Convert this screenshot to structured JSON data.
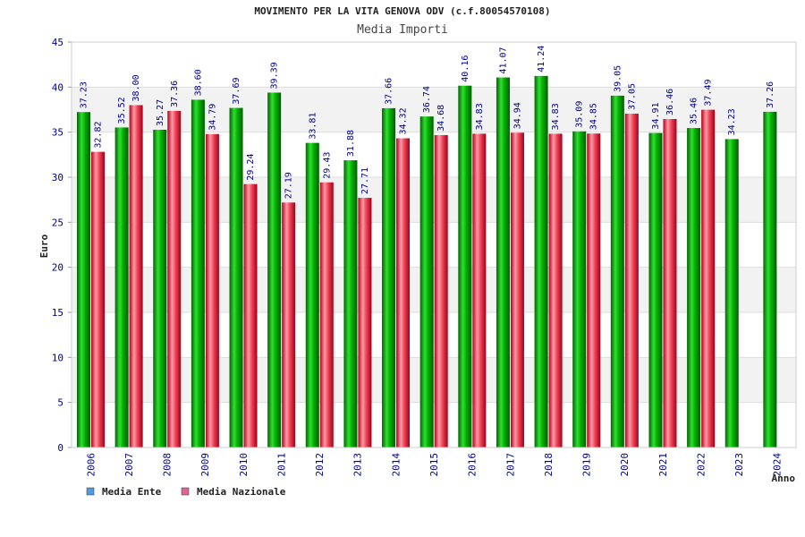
{
  "chart_data": {
    "type": "bar",
    "title": "MOVIMENTO PER LA VITA GENOVA ODV (c.f.80054570108)",
    "subtitle": "Media Importi",
    "ylabel": "Euro",
    "xlabel": "Anno",
    "ylim": [
      0,
      45
    ],
    "yticks": [
      "0",
      "5",
      "10",
      "15",
      "20",
      "25",
      "30",
      "35",
      "40",
      "45"
    ],
    "categories": [
      "2006",
      "2007",
      "2008",
      "2009",
      "2010",
      "2011",
      "2012",
      "2013",
      "2014",
      "2015",
      "2016",
      "2017",
      "2018",
      "2019",
      "2020",
      "2021",
      "2022",
      "2023",
      "2024"
    ],
    "series": [
      {
        "name": "Media Ente",
        "color": "#00a000",
        "values": [
          37.23,
          35.52,
          35.27,
          38.6,
          37.69,
          39.39,
          33.81,
          31.88,
          37.66,
          36.74,
          40.16,
          41.07,
          41.24,
          35.09,
          39.05,
          34.91,
          35.46,
          34.23,
          37.26
        ],
        "labels": [
          "37.23",
          "35.52",
          "35.27",
          "38.60",
          "37.69",
          "39.39",
          "33.81",
          "31.88",
          "37.66",
          "36.74",
          "40.16",
          "41.07",
          "41.24",
          "35.09",
          "39.05",
          "34.91",
          "35.46",
          "34.23",
          "37.26"
        ]
      },
      {
        "name": "Media Nazionale",
        "color": "#e8283c",
        "values": [
          32.82,
          38.0,
          37.36,
          34.79,
          29.24,
          27.19,
          29.43,
          27.71,
          34.32,
          34.68,
          34.83,
          34.94,
          34.83,
          34.85,
          37.05,
          36.46,
          37.49,
          null,
          null
        ],
        "labels": [
          "32.82",
          "38.00",
          "37.36",
          "34.79",
          "29.24",
          "27.19",
          "29.43",
          "27.71",
          "34.32",
          "34.68",
          "34.83",
          "34.94",
          "34.83",
          "34.85",
          "37.05",
          "36.46",
          "37.49",
          "",
          ""
        ]
      }
    ],
    "legend": {
      "placement": "bottom-left",
      "entries": [
        {
          "label": "Media Ente",
          "color": "#5599dd"
        },
        {
          "label": "Media Nazionale",
          "color": "#dd6699"
        }
      ]
    },
    "grid": true
  }
}
